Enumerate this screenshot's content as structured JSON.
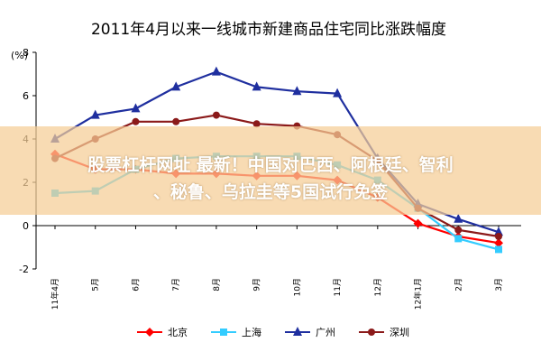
{
  "banner": {
    "line1": "股票杠杆网址 最新！中国对巴西、阿根廷、智利",
    "line2": "、秘鲁、乌拉圭等5国试行免签"
  },
  "chart_data": {
    "type": "line",
    "title": "2011年4月以来一线城市新建商品住宅同比涨跌幅度",
    "yunit": "(%)",
    "ylim": [
      -2,
      8
    ],
    "yticks": [
      -2,
      0,
      2,
      4,
      6,
      8
    ],
    "categories": [
      "11年4月",
      "5月",
      "6月",
      "7月",
      "8月",
      "9月",
      "10月",
      "11月",
      "12月",
      "12年1月",
      "2月",
      "3月"
    ],
    "grid": false,
    "legend_position": "bottom",
    "series": [
      {
        "name": "北京",
        "color": "#ff0000",
        "marker": "diamond",
        "values": [
          3.3,
          2.6,
          2.6,
          2.4,
          2.4,
          2.3,
          2.3,
          2.1,
          1.3,
          0.1,
          -0.5,
          -0.8
        ]
      },
      {
        "name": "上海",
        "color": "#33ccff",
        "marker": "square",
        "values": [
          1.5,
          1.6,
          2.6,
          3.1,
          3.2,
          3.2,
          3.2,
          2.8,
          2.1,
          0.8,
          -0.6,
          -1.1
        ]
      },
      {
        "name": "广州",
        "color": "#1f2f9f",
        "marker": "triangle",
        "values": [
          4.0,
          5.1,
          5.4,
          6.4,
          7.1,
          6.4,
          6.2,
          6.1,
          3.1,
          1.0,
          0.3,
          -0.3
        ]
      },
      {
        "name": "深圳",
        "color": "#8b1a1a",
        "marker": "circle",
        "values": [
          3.1,
          4.0,
          4.8,
          4.8,
          5.1,
          4.7,
          4.6,
          4.2,
          3.0,
          0.8,
          -0.2,
          -0.5
        ]
      }
    ]
  }
}
